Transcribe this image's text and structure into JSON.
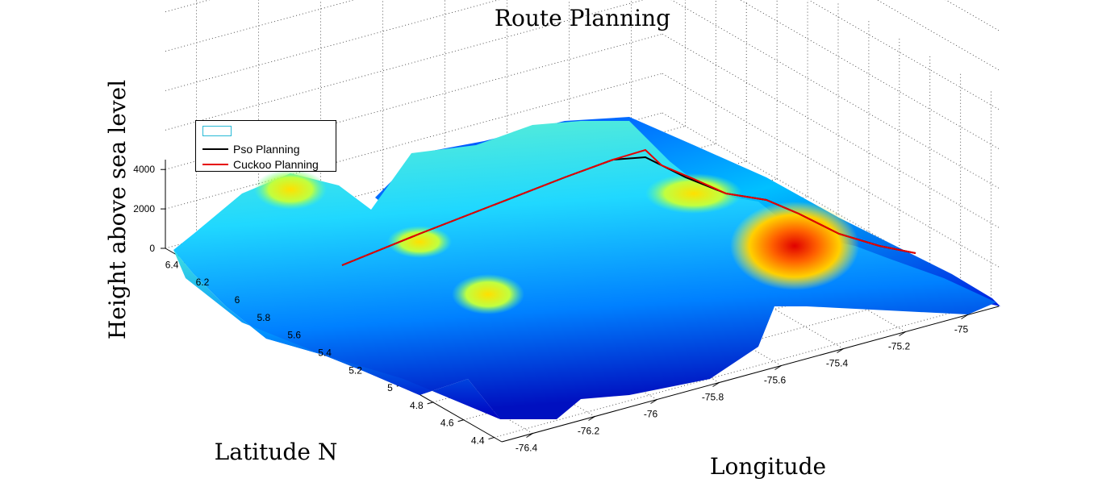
{
  "chart_data": {
    "type": "surface",
    "title": "Route Planning",
    "xlabel": "Longitude",
    "ylabel": "Latitude N",
    "zlabel": "Height above sea level",
    "x_ticks": [
      "-76.4",
      "-76.2",
      "-76",
      "-75.8",
      "-75.6",
      "-75.4",
      "-75.2",
      "-75"
    ],
    "y_ticks": [
      "4.4",
      "4.6",
      "4.8",
      "5",
      "5.2",
      "5.4",
      "5.6",
      "5.8",
      "6",
      "6.2",
      "6.4"
    ],
    "z_ticks": [
      "0",
      "2000",
      "4000"
    ],
    "xlim": [
      -76.5,
      -74.9
    ],
    "ylim": [
      4.35,
      6.55
    ],
    "zlim": [
      0,
      4500
    ],
    "grid": true,
    "colormap": [
      "#00008f",
      "#0000ff",
      "#0080ff",
      "#00ffff",
      "#80ff80",
      "#ffff00",
      "#ff8000",
      "#ff0000"
    ],
    "series": [
      {
        "name": "",
        "color": "#27b9d6",
        "kind": "surface"
      },
      {
        "name": "Pso Planning",
        "color": "#000000",
        "kind": "line",
        "points": [
          [
            -75.85,
            6.35,
            4300
          ],
          [
            -75.7,
            6.15,
            4200
          ],
          [
            -75.55,
            5.95,
            4100
          ],
          [
            -75.38,
            5.72,
            4000
          ],
          [
            -75.28,
            5.55,
            3900
          ],
          [
            -75.18,
            5.35,
            3700
          ],
          [
            -75.1,
            5.2,
            3200
          ],
          [
            -75.02,
            5.05,
            2700
          ],
          [
            -74.98,
            4.95,
            2600
          ]
        ]
      },
      {
        "name": "Cuckoo Planning",
        "color": "#e60000",
        "kind": "line",
        "points": [
          [
            -75.85,
            6.35,
            4300
          ],
          [
            -75.7,
            6.15,
            4200
          ],
          [
            -75.55,
            5.95,
            4200
          ],
          [
            -75.4,
            5.74,
            4350
          ],
          [
            -75.3,
            5.57,
            4000
          ],
          [
            -75.19,
            5.36,
            3800
          ],
          [
            -75.12,
            5.22,
            3300
          ],
          [
            -75.04,
            5.07,
            2800
          ],
          [
            -74.99,
            4.96,
            2600
          ]
        ]
      }
    ],
    "legend_position": "top-left"
  }
}
